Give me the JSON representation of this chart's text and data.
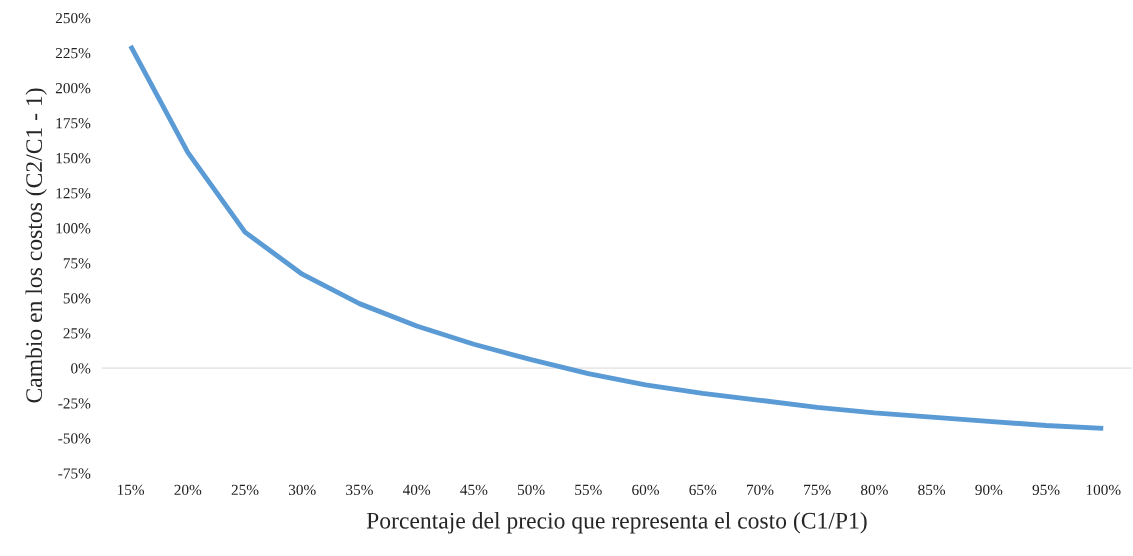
{
  "chart_data": {
    "type": "line",
    "xlabel": "Porcentaje del precio que representa el costo (C1/P1)",
    "ylabel": "Cambio en los costos (C2/C1 - 1)",
    "categories": [
      "15%",
      "20%",
      "25%",
      "30%",
      "35%",
      "40%",
      "45%",
      "50%",
      "55%",
      "60%",
      "65%",
      "70%",
      "75%",
      "80%",
      "85%",
      "90%",
      "95%",
      "100%"
    ],
    "series": [
      {
        "color": "#5b9bd5",
        "values": [
          230,
          154,
          97,
          67,
          46,
          30,
          17,
          6,
          -4,
          -12,
          -18,
          -23,
          -28,
          -32,
          -35,
          -38,
          -41,
          -43
        ]
      }
    ],
    "ylim": [
      -75,
      250
    ],
    "yticks": [
      {
        "value": -75,
        "label": "-75%"
      },
      {
        "value": -50,
        "label": "-50%"
      },
      {
        "value": -25,
        "label": "-25%"
      },
      {
        "value": 0,
        "label": "0%"
      },
      {
        "value": 25,
        "label": "25%"
      },
      {
        "value": 50,
        "label": "50%"
      },
      {
        "value": 75,
        "label": "75%"
      },
      {
        "value": 100,
        "label": "100%"
      },
      {
        "value": 125,
        "label": "125%"
      },
      {
        "value": 150,
        "label": "150%"
      },
      {
        "value": 175,
        "label": "175%"
      },
      {
        "value": 200,
        "label": "200%"
      },
      {
        "value": 225,
        "label": "225%"
      },
      {
        "value": 250,
        "label": "250%"
      }
    ],
    "ref_lines": [
      {
        "axis": "y",
        "value": 0,
        "color": "#e8e8e8"
      }
    ],
    "grid": false,
    "marker": "none",
    "line_style": "solid"
  }
}
